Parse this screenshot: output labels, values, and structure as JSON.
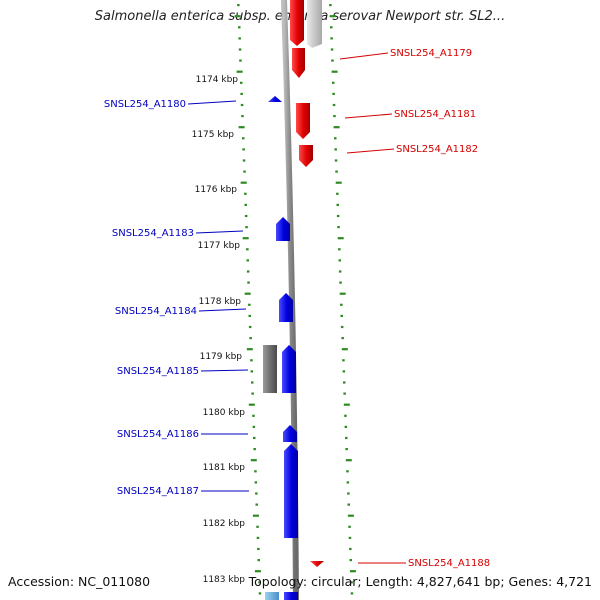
{
  "title": "Salmonella enterica subsp. enterica serovar Newport str. SL2...",
  "accession": "Accession: NC_011080",
  "summary": "Topology: circular; Length: 4,827,641 bp; Genes: 4,721",
  "kbp_ticks": [
    "1174 kbp",
    "1175 kbp",
    "1176 kbp",
    "1177 kbp",
    "1178 kbp",
    "1179 kbp",
    "1180 kbp",
    "1181 kbp",
    "1182 kbp",
    "1183 kbp"
  ],
  "genes": [
    {
      "label": "SNSL254_A1179",
      "strand": "forward",
      "color": "#e00000"
    },
    {
      "label": "SNSL254_A1180",
      "strand": "reverse",
      "color": "#0000e0"
    },
    {
      "label": "SNSL254_A1181",
      "strand": "forward",
      "color": "#e00000"
    },
    {
      "label": "SNSL254_A1182",
      "strand": "forward",
      "color": "#e00000"
    },
    {
      "label": "SNSL254_A1183",
      "strand": "reverse",
      "color": "#0000e0"
    },
    {
      "label": "SNSL254_A1184",
      "strand": "reverse",
      "color": "#0000e0"
    },
    {
      "label": "SNSL254_A1185",
      "strand": "reverse",
      "color": "#0000e0"
    },
    {
      "label": "SNSL254_A1186",
      "strand": "reverse",
      "color": "#0000e0"
    },
    {
      "label": "SNSL254_A1187",
      "strand": "reverse",
      "color": "#0000e0"
    },
    {
      "label": "SNSL254_A1188",
      "strand": "forward",
      "color": "#e00000"
    }
  ]
}
